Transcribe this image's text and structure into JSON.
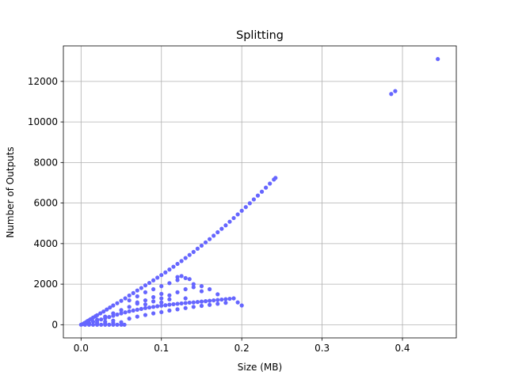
{
  "chart_data": {
    "type": "scatter",
    "title": "Splitting",
    "xlabel": "Size (MB)",
    "ylabel": "Number of Outputs",
    "xlim": [
      -0.022,
      0.467
    ],
    "ylim": [
      -650,
      13750
    ],
    "grid": true,
    "marker_color": "#6666ff",
    "x_ticks": [
      {
        "value": 0.0,
        "label": "0.0"
      },
      {
        "value": 0.1,
        "label": "0.1"
      },
      {
        "value": 0.2,
        "label": "0.2"
      },
      {
        "value": 0.3,
        "label": "0.3"
      },
      {
        "value": 0.4,
        "label": "0.4"
      }
    ],
    "y_ticks": [
      {
        "value": 0,
        "label": "0"
      },
      {
        "value": 2000,
        "label": "2000"
      },
      {
        "value": 4000,
        "label": "4000"
      },
      {
        "value": 6000,
        "label": "6000"
      },
      {
        "value": 8000,
        "label": "8000"
      },
      {
        "value": 10000,
        "label": "10000"
      },
      {
        "value": 12000,
        "label": "12000"
      }
    ],
    "series": [
      {
        "points": [
          [
            0.0,
            0
          ],
          [
            0.002,
            30
          ],
          [
            0.004,
            80
          ],
          [
            0.006,
            120
          ],
          [
            0.008,
            180
          ],
          [
            0.01,
            220
          ],
          [
            0.012,
            280
          ],
          [
            0.015,
            350
          ],
          [
            0.018,
            420
          ],
          [
            0.02,
            470
          ],
          [
            0.024,
            560
          ],
          [
            0.028,
            650
          ],
          [
            0.032,
            750
          ],
          [
            0.036,
            850
          ],
          [
            0.04,
            950
          ],
          [
            0.045,
            1060
          ],
          [
            0.05,
            1180
          ],
          [
            0.055,
            1300
          ],
          [
            0.06,
            1440
          ],
          [
            0.065,
            1560
          ],
          [
            0.07,
            1690
          ],
          [
            0.075,
            1810
          ],
          [
            0.08,
            1940
          ],
          [
            0.085,
            2060
          ],
          [
            0.09,
            2190
          ],
          [
            0.095,
            2320
          ],
          [
            0.1,
            2450
          ],
          [
            0.105,
            2580
          ],
          [
            0.11,
            2720
          ],
          [
            0.115,
            2860
          ],
          [
            0.12,
            3000
          ],
          [
            0.125,
            3140
          ],
          [
            0.13,
            3290
          ],
          [
            0.135,
            3440
          ],
          [
            0.14,
            3590
          ],
          [
            0.145,
            3750
          ],
          [
            0.15,
            3900
          ],
          [
            0.155,
            4060
          ],
          [
            0.16,
            4220
          ],
          [
            0.165,
            4390
          ],
          [
            0.17,
            4560
          ],
          [
            0.175,
            4730
          ],
          [
            0.18,
            4900
          ],
          [
            0.185,
            5080
          ],
          [
            0.19,
            5260
          ],
          [
            0.195,
            5440
          ],
          [
            0.2,
            5620
          ],
          [
            0.205,
            5800
          ],
          [
            0.21,
            5990
          ],
          [
            0.215,
            6180
          ],
          [
            0.22,
            6370
          ],
          [
            0.225,
            6560
          ],
          [
            0.23,
            6760
          ],
          [
            0.235,
            6960
          ],
          [
            0.24,
            7160
          ],
          [
            0.242,
            7240
          ],
          [
            0.005,
            40
          ],
          [
            0.01,
            90
          ],
          [
            0.015,
            150
          ],
          [
            0.02,
            200
          ],
          [
            0.025,
            260
          ],
          [
            0.03,
            320
          ],
          [
            0.035,
            380
          ],
          [
            0.04,
            440
          ],
          [
            0.045,
            500
          ],
          [
            0.05,
            560
          ],
          [
            0.055,
            610
          ],
          [
            0.06,
            660
          ],
          [
            0.065,
            700
          ],
          [
            0.07,
            740
          ],
          [
            0.075,
            780
          ],
          [
            0.08,
            820
          ],
          [
            0.085,
            850
          ],
          [
            0.09,
            880
          ],
          [
            0.095,
            910
          ],
          [
            0.1,
            940
          ],
          [
            0.105,
            960
          ],
          [
            0.11,
            990
          ],
          [
            0.115,
            1010
          ],
          [
            0.12,
            1030
          ],
          [
            0.125,
            1050
          ],
          [
            0.13,
            1070
          ],
          [
            0.135,
            1090
          ],
          [
            0.14,
            1100
          ],
          [
            0.145,
            1120
          ],
          [
            0.15,
            1140
          ],
          [
            0.155,
            1160
          ],
          [
            0.16,
            1180
          ],
          [
            0.165,
            1200
          ],
          [
            0.17,
            1220
          ],
          [
            0.175,
            1240
          ],
          [
            0.18,
            1260
          ],
          [
            0.185,
            1280
          ],
          [
            0.19,
            1300
          ],
          [
            0.195,
            1100
          ],
          [
            0.2,
            950
          ],
          [
            0.01,
            20
          ],
          [
            0.02,
            40
          ],
          [
            0.03,
            60
          ],
          [
            0.04,
            90
          ],
          [
            0.05,
            120
          ],
          [
            0.06,
            300
          ],
          [
            0.07,
            400
          ],
          [
            0.08,
            480
          ],
          [
            0.09,
            560
          ],
          [
            0.1,
            620
          ],
          [
            0.11,
            700
          ],
          [
            0.12,
            760
          ],
          [
            0.13,
            820
          ],
          [
            0.14,
            880
          ],
          [
            0.15,
            930
          ],
          [
            0.16,
            980
          ],
          [
            0.17,
            1030
          ],
          [
            0.18,
            1080
          ],
          [
            0.02,
            250
          ],
          [
            0.03,
            400
          ],
          [
            0.04,
            560
          ],
          [
            0.05,
            720
          ],
          [
            0.06,
            880
          ],
          [
            0.07,
            1040
          ],
          [
            0.08,
            1200
          ],
          [
            0.09,
            1360
          ],
          [
            0.1,
            1520
          ],
          [
            0.06,
            1200
          ],
          [
            0.07,
            1400
          ],
          [
            0.08,
            1600
          ],
          [
            0.09,
            1750
          ],
          [
            0.1,
            1900
          ],
          [
            0.11,
            2050
          ],
          [
            0.12,
            2200
          ],
          [
            0.13,
            2300
          ],
          [
            0.135,
            2250
          ],
          [
            0.1,
            1300
          ],
          [
            0.11,
            1450
          ],
          [
            0.12,
            1600
          ],
          [
            0.13,
            1750
          ],
          [
            0.14,
            1850
          ],
          [
            0.15,
            1900
          ],
          [
            0.16,
            1750
          ],
          [
            0.17,
            1500
          ],
          [
            0.12,
            2350
          ],
          [
            0.125,
            2400
          ],
          [
            0.14,
            2000
          ],
          [
            0.15,
            1650
          ],
          [
            0.08,
            1000
          ],
          [
            0.09,
            1150
          ],
          [
            0.1,
            1100
          ],
          [
            0.07,
            1100
          ],
          [
            0.11,
            1250
          ],
          [
            0.13,
            1300
          ],
          [
            0.005,
            0
          ],
          [
            0.01,
            0
          ],
          [
            0.015,
            0
          ],
          [
            0.02,
            0
          ],
          [
            0.025,
            0
          ],
          [
            0.03,
            0
          ],
          [
            0.035,
            0
          ],
          [
            0.04,
            0
          ],
          [
            0.045,
            0
          ],
          [
            0.05,
            0
          ],
          [
            0.054,
            0
          ],
          [
            0.02,
            100
          ],
          [
            0.03,
            150
          ],
          [
            0.04,
            200
          ],
          [
            0.386,
            11380
          ],
          [
            0.391,
            11520
          ],
          [
            0.444,
            13100
          ]
        ]
      }
    ]
  }
}
